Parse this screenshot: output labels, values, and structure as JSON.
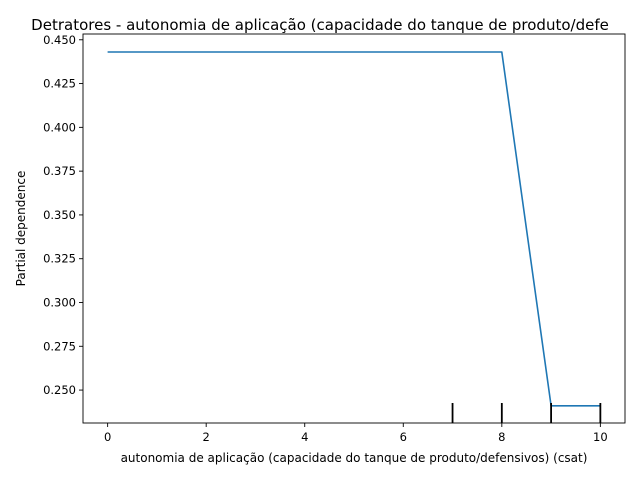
{
  "chart_data": {
    "type": "line",
    "title": "Detratores - autonomia de aplicação (capacidade do tanque de produto/defe",
    "xlabel": "autonomia de aplicação (capacidade do tanque de produto/defensivos) (csat)",
    "ylabel": "Partial dependence",
    "xlim": [
      -0.5,
      10.5
    ],
    "ylim": [
      0.2312,
      0.4533
    ],
    "x_ticks": [
      0,
      2,
      4,
      6,
      8,
      10
    ],
    "x_tick_labels": [
      "0",
      "2",
      "4",
      "6",
      "8",
      "10"
    ],
    "y_ticks": [
      0.25,
      0.275,
      0.3,
      0.325,
      0.35,
      0.375,
      0.4,
      0.425,
      0.45
    ],
    "y_tick_labels": [
      "0.250",
      "0.275",
      "0.300",
      "0.325",
      "0.350",
      "0.375",
      "0.400",
      "0.425",
      "0.450"
    ],
    "series": [
      {
        "x": [
          0,
          8,
          9,
          10
        ],
        "y": [
          0.443,
          0.443,
          0.241,
          0.241
        ]
      }
    ],
    "rug_x": [
      7,
      8,
      9,
      10
    ],
    "grid": false,
    "colors": {
      "line": "#1f77b4",
      "rug": "#000000"
    }
  }
}
